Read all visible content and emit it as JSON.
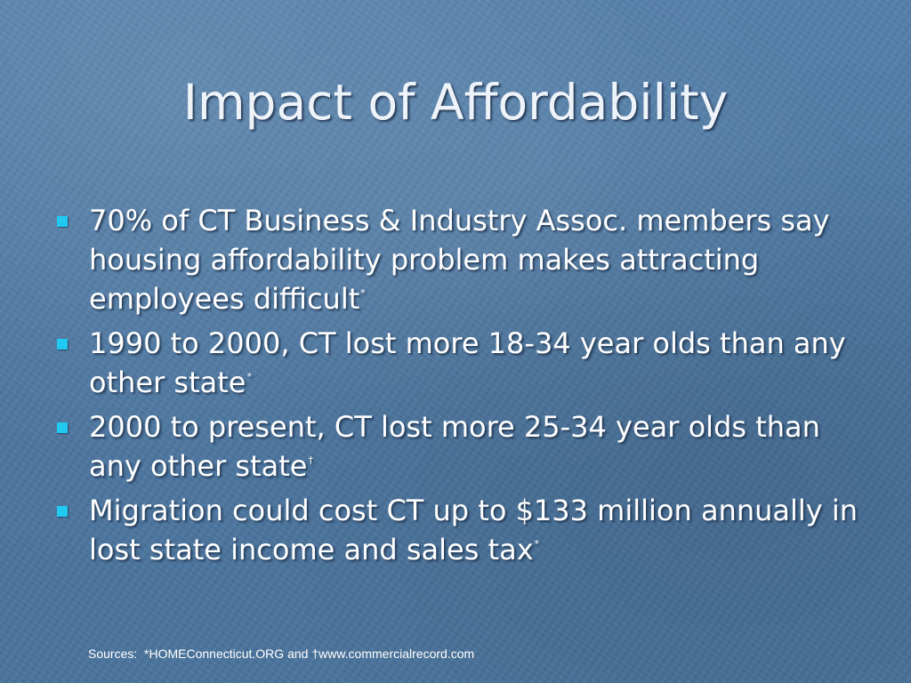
{
  "slide": {
    "title": "Impact of Affordability",
    "bullet_color": "#1fc9ef",
    "bullets": [
      {
        "text": "70% of CT Business & Industry Assoc. members say housing affordability problem makes attracting employees difficult",
        "note": "*"
      },
      {
        "text": "1990 to 2000, CT lost more 18-34 year olds than any other state",
        "note": "*"
      },
      {
        "text": "2000 to present, CT lost more 25-34 year olds than any other state",
        "note": "†"
      },
      {
        "text": "Migration could cost CT up to $133 million annually in lost state income and sales tax",
        "note": "*"
      }
    ],
    "sources": "Sources:  *HOMEConnecticut.ORG and †www.commercialrecord.com"
  }
}
